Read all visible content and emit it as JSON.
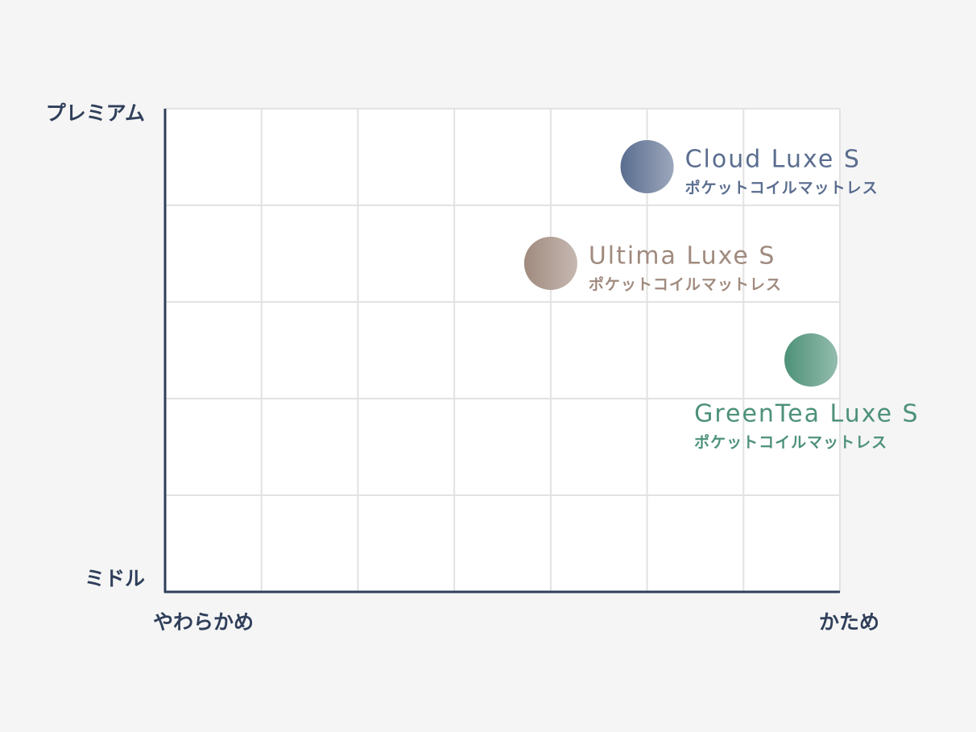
{
  "chart_data": {
    "type": "scatter",
    "x_axis_labels": [
      "やわらかめ",
      "かため"
    ],
    "y_axis_labels": [
      "ミドル",
      "プレミアム"
    ],
    "xlim": [
      0,
      7
    ],
    "ylim": [
      0,
      5
    ],
    "xticks": [
      0,
      1,
      2,
      3,
      4,
      5,
      6,
      7
    ],
    "yticks": [
      0,
      1,
      2,
      3,
      4,
      5
    ],
    "grid": true,
    "series": [
      {
        "name": "Cloud Luxe S",
        "subtitle": "ポケットコイルマットレス",
        "color": "#5a6d8f",
        "x": [
          5.0
        ],
        "values": [
          4.4
        ]
      },
      {
        "name": "Ultima Luxe S",
        "subtitle": "ポケットコイルマットレス",
        "color": "#a08a7e",
        "x": [
          4.0
        ],
        "values": [
          3.4
        ]
      },
      {
        "name": "GreenTea Luxe S",
        "subtitle": "ポケットコイルマットレス",
        "color": "#4d9178",
        "x": [
          6.7
        ],
        "values": [
          2.4
        ]
      }
    ]
  }
}
